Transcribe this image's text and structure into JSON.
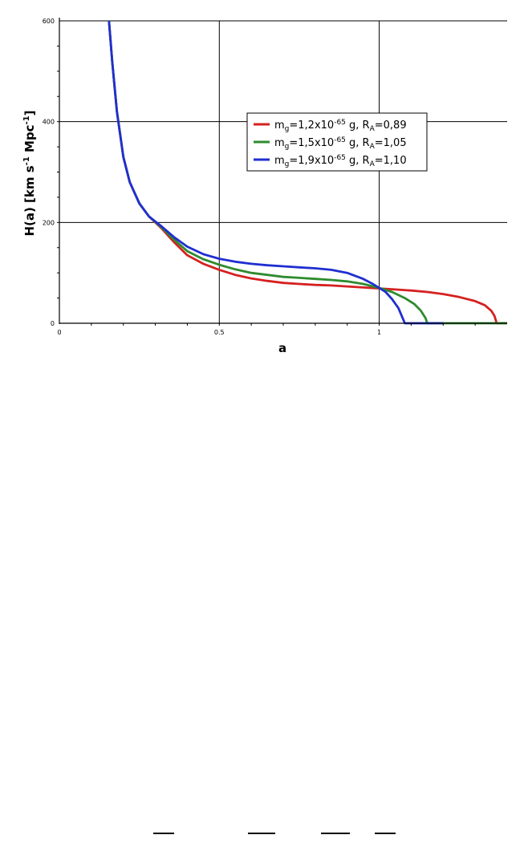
{
  "chart_data": {
    "type": "line",
    "xlabel": "a",
    "ylabel": "H(a) [km s⁻¹ Mpc⁻¹]",
    "ylabel_parts": {
      "main": "H(a) [km s",
      "sup1": "-1",
      "mid": " Mpc",
      "sup2": "-1",
      "end": "]"
    },
    "xlim": [
      0,
      1.4
    ],
    "ylim": [
      0,
      600
    ],
    "x_ticks": [
      {
        "value": 0,
        "label": "0"
      },
      {
        "value": 0.5,
        "label": "0.5"
      },
      {
        "value": 1,
        "label": "1"
      }
    ],
    "y_ticks": [
      {
        "value": 0,
        "label": "0"
      },
      {
        "value": 200,
        "label": "200"
      },
      {
        "value": 400,
        "label": "400"
      },
      {
        "value": 600,
        "label": "600"
      }
    ],
    "grid": true,
    "legend_position": "top-right",
    "series": [
      {
        "name": "mg=1,2x10-65 g, RA=0,89",
        "legend": {
          "m": "m",
          "m_sub": "g",
          "coef": "=1,2x10",
          "exp": "-65",
          "g": " g, R",
          "r_sub": "A",
          "val": "=0,89"
        },
        "color": "#d62020",
        "points": [
          [
            0.155,
            600
          ],
          [
            0.165,
            520
          ],
          [
            0.18,
            420
          ],
          [
            0.2,
            330
          ],
          [
            0.22,
            280
          ],
          [
            0.25,
            238
          ],
          [
            0.28,
            212
          ],
          [
            0.32,
            188
          ],
          [
            0.36,
            160
          ],
          [
            0.4,
            135
          ],
          [
            0.45,
            118
          ],
          [
            0.5,
            106
          ],
          [
            0.55,
            96
          ],
          [
            0.6,
            89
          ],
          [
            0.65,
            84
          ],
          [
            0.7,
            80
          ],
          [
            0.75,
            78
          ],
          [
            0.8,
            76
          ],
          [
            0.85,
            75
          ],
          [
            0.9,
            73
          ],
          [
            0.95,
            71
          ],
          [
            1.0,
            69
          ],
          [
            1.05,
            67
          ],
          [
            1.1,
            65
          ],
          [
            1.15,
            62
          ],
          [
            1.2,
            58
          ],
          [
            1.25,
            52
          ],
          [
            1.3,
            44
          ],
          [
            1.33,
            36
          ],
          [
            1.35,
            25
          ],
          [
            1.36,
            15
          ],
          [
            1.365,
            5
          ],
          [
            1.367,
            0
          ],
          [
            1.4,
            0
          ]
        ]
      },
      {
        "name": "mg=1,5x10-65 g, RA=1,05",
        "legend": {
          "m": "m",
          "m_sub": "g",
          "coef": "=1,5x10",
          "exp": "-65",
          "g": " g, R",
          "r_sub": "A",
          "val": "=1,05"
        },
        "color": "#2e8b2e",
        "points": [
          [
            0.155,
            600
          ],
          [
            0.165,
            520
          ],
          [
            0.18,
            420
          ],
          [
            0.2,
            330
          ],
          [
            0.22,
            280
          ],
          [
            0.25,
            238
          ],
          [
            0.28,
            212
          ],
          [
            0.32,
            190
          ],
          [
            0.36,
            165
          ],
          [
            0.4,
            143
          ],
          [
            0.45,
            127
          ],
          [
            0.5,
            116
          ],
          [
            0.55,
            107
          ],
          [
            0.6,
            100
          ],
          [
            0.65,
            96
          ],
          [
            0.7,
            92
          ],
          [
            0.75,
            90
          ],
          [
            0.8,
            88
          ],
          [
            0.85,
            86
          ],
          [
            0.9,
            83
          ],
          [
            0.95,
            78
          ],
          [
            1.0,
            70
          ],
          [
            1.04,
            62
          ],
          [
            1.08,
            50
          ],
          [
            1.11,
            38
          ],
          [
            1.13,
            25
          ],
          [
            1.145,
            10
          ],
          [
            1.15,
            0
          ],
          [
            1.4,
            0
          ]
        ]
      },
      {
        "name": "mg=1,9x10-65 g, RA=1,10",
        "legend": {
          "m": "m",
          "m_sub": "g",
          "coef": "=1,9x10",
          "exp": "-65",
          "g": " g, R",
          "r_sub": "A",
          "val": "=1,10"
        },
        "color": "#1f2fd0",
        "points": [
          [
            0.155,
            600
          ],
          [
            0.165,
            520
          ],
          [
            0.18,
            420
          ],
          [
            0.2,
            330
          ],
          [
            0.22,
            280
          ],
          [
            0.25,
            238
          ],
          [
            0.28,
            212
          ],
          [
            0.32,
            192
          ],
          [
            0.36,
            170
          ],
          [
            0.4,
            152
          ],
          [
            0.45,
            137
          ],
          [
            0.5,
            128
          ],
          [
            0.55,
            122
          ],
          [
            0.6,
            118
          ],
          [
            0.65,
            115
          ],
          [
            0.7,
            113
          ],
          [
            0.75,
            111
          ],
          [
            0.8,
            109
          ],
          [
            0.85,
            106
          ],
          [
            0.9,
            100
          ],
          [
            0.95,
            88
          ],
          [
            0.98,
            78
          ],
          [
            1.0,
            70
          ],
          [
            1.02,
            62
          ],
          [
            1.04,
            48
          ],
          [
            1.06,
            30
          ],
          [
            1.07,
            15
          ],
          [
            1.08,
            0
          ],
          [
            1.2,
            0
          ]
        ]
      }
    ]
  }
}
